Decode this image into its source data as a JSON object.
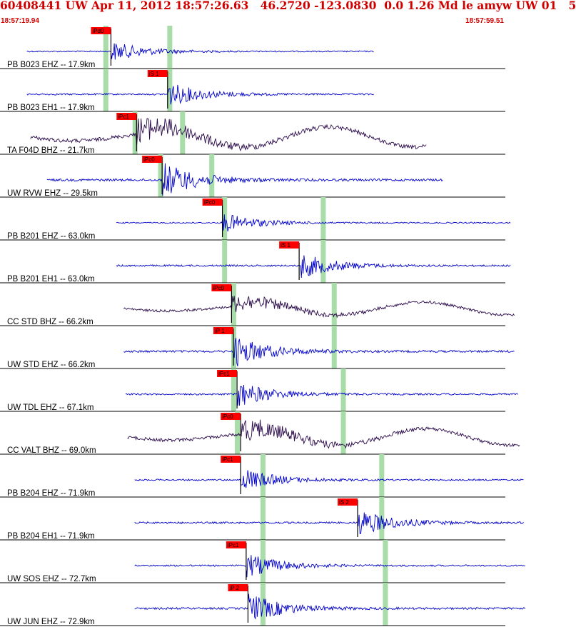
{
  "header": {
    "title": "60408441 UW Apr 11, 2012 18:57:26.63   46.2720 -123.0830  0.0 1.26 Md le amyw UW 01   5",
    "time_start": "18:57:19.94",
    "time_end": "18:57:59.51"
  },
  "colors": {
    "trace_blue": "#0000cc",
    "trace_dark": "#2a0a4a",
    "pick_flag": "#ff0000",
    "pick_label_text": "#000000",
    "marker_green": "#a8dca8",
    "separator": "#000000",
    "header_text": "#d00000"
  },
  "traces": [
    {
      "label": "PB B023 EHZ -- 17.9km",
      "color": "blue",
      "pick": "iPd0",
      "pick_time": 4.9,
      "green": [
        4.6,
        8.1
      ],
      "data_start": 0.3,
      "data_end": 19.3,
      "amp_scale": 1.0,
      "form": "spiky"
    },
    {
      "label": "PB B023 EH1 -- 17.9km",
      "color": "blue",
      "pick": "iS 1",
      "pick_time": 8.0,
      "green": [
        4.6,
        8.1
      ],
      "data_start": 0.3,
      "data_end": 19.3,
      "amp_scale": 1.2,
      "form": "spiky"
    },
    {
      "label": "TA F04D BHZ -- 21.7km",
      "color": "dark",
      "pick": "iPc1",
      "pick_time": 6.3,
      "green": [
        6.2,
        8.8
      ],
      "data_start": 0.5,
      "data_end": 22.2,
      "amp_scale": 2.2,
      "form": "wavy"
    },
    {
      "label": "UW RVW EHZ -- 29.5km",
      "color": "blue",
      "pick": "iPc0",
      "pick_time": 7.7,
      "green": [
        7.6,
        10.4
      ],
      "data_start": 1.4,
      "data_end": 23.1,
      "amp_scale": 1.8,
      "form": "spiky"
    },
    {
      "label": "PB B201 EHZ -- 63.0km",
      "color": "blue",
      "pick": "iPc0",
      "pick_time": 11.0,
      "green": [
        11.1,
        16.5
      ],
      "data_start": 5.2,
      "data_end": 26.8,
      "amp_scale": 1.0,
      "form": "spiky"
    },
    {
      "label": "PB B201 EH1 -- 63.0km",
      "color": "blue",
      "pick": "iS 1",
      "pick_time": 15.2,
      "green": [
        11.1,
        16.5
      ],
      "data_start": 5.2,
      "data_end": 26.8,
      "amp_scale": 1.3,
      "form": "spiky"
    },
    {
      "label": "CC STD BHZ -- 66.2km",
      "color": "dark",
      "pick": "iPc0",
      "pick_time": 11.5,
      "green": [
        11.6,
        17.1
      ],
      "data_start": 5.6,
      "data_end": 27.0,
      "amp_scale": 1.4,
      "form": "wavy"
    },
    {
      "label": "UW STD EHZ -- 66.2km",
      "color": "blue",
      "pick": "iP 1",
      "pick_time": 11.6,
      "green": [
        11.6,
        17.1
      ],
      "data_start": 5.6,
      "data_end": 27.0,
      "amp_scale": 1.6,
      "form": "spiky"
    },
    {
      "label": "UW TDL EHZ -- 67.1km",
      "color": "blue",
      "pick": "iPc1",
      "pick_time": 11.8,
      "green": [
        11.6,
        17.6
      ],
      "data_start": 5.7,
      "data_end": 27.2,
      "amp_scale": 1.3,
      "form": "spiky"
    },
    {
      "label": "CC VALT BHZ -- 69.0km",
      "color": "dark",
      "pick": "iPc0",
      "pick_time": 12.0,
      "green": [
        11.8,
        17.6
      ],
      "data_start": 5.8,
      "data_end": 27.3,
      "amp_scale": 1.8,
      "form": "wavy"
    },
    {
      "label": "PB B204 EHZ -- 71.9km",
      "color": "blue",
      "pick": "iPc1",
      "pick_time": 12.0,
      "green": [
        13.2,
        19.7
      ],
      "data_start": 6.2,
      "data_end": 27.5,
      "amp_scale": 1.2,
      "form": "spiky"
    },
    {
      "label": "PB B204 EH1 -- 71.9km",
      "color": "blue",
      "pick": "iS 2",
      "pick_time": 18.4,
      "green": [
        13.2,
        19.7
      ],
      "data_start": 6.2,
      "data_end": 27.5,
      "amp_scale": 1.4,
      "form": "spiky"
    },
    {
      "label": "UW SOS EHZ -- 72.7km",
      "color": "blue",
      "pick": "iPc1",
      "pick_time": 12.3,
      "green": [
        13.2,
        19.9
      ],
      "data_start": 6.2,
      "data_end": 27.6,
      "amp_scale": 1.2,
      "form": "spiky"
    },
    {
      "label": "UW JUN EHZ -- 72.9km",
      "color": "blue",
      "pick": "iP 2",
      "pick_time": 12.4,
      "green": [
        13.2,
        19.9
      ],
      "data_start": 6.2,
      "data_end": 27.6,
      "amp_scale": 1.5,
      "form": "spiky"
    }
  ]
}
